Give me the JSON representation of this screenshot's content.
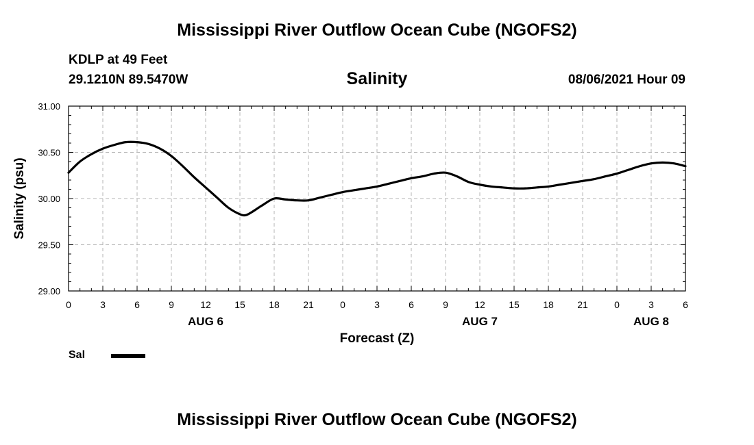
{
  "header": {
    "title": "Mississippi River Outflow Ocean Cube (NGOFS2)",
    "station": "KDLP at 49 Feet",
    "coordinates": "29.1210N  89.5470W",
    "chart_title": "Salinity",
    "datetime": "08/06/2021 Hour 09"
  },
  "footer": {
    "title": "Mississippi River Outflow Ocean Cube (NGOFS2)"
  },
  "legend": {
    "label": "Sal",
    "color": "#000000"
  },
  "chart_data": {
    "type": "line",
    "title": "Salinity",
    "xlabel": "Forecast (Z)",
    "ylabel": "Salinity (psu)",
    "xlim": [
      0,
      54
    ],
    "ylim": [
      29.0,
      31.0
    ],
    "x_ticks": [
      0,
      3,
      6,
      9,
      12,
      15,
      18,
      21,
      24,
      27,
      30,
      33,
      36,
      39,
      42,
      45,
      48,
      51,
      54
    ],
    "x_tick_labels": [
      "0",
      "3",
      "6",
      "9",
      "12",
      "15",
      "18",
      "21",
      "0",
      "3",
      "6",
      "9",
      "12",
      "15",
      "18",
      "21",
      "0",
      "3",
      "6"
    ],
    "day_labels": [
      {
        "x": 12,
        "label": "AUG 6"
      },
      {
        "x": 36,
        "label": "AUG 7"
      },
      {
        "x": 51,
        "label": "AUG 8"
      }
    ],
    "y_ticks": [
      29.0,
      29.5,
      30.0,
      30.5,
      31.0
    ],
    "y_tick_labels": [
      "29.00",
      "29.50",
      "30.00",
      "30.50",
      "31.00"
    ],
    "grid": true,
    "legend_position": "bottom-left",
    "series": [
      {
        "name": "Sal",
        "color": "#000000",
        "x": [
          0,
          1,
          2,
          3,
          4,
          5,
          6,
          7,
          8,
          9,
          10,
          11,
          12,
          13,
          14,
          15,
          15.5,
          16,
          17,
          18,
          19,
          20,
          21,
          22,
          23,
          24,
          25,
          26,
          27,
          28,
          29,
          30,
          31,
          32,
          33,
          34,
          35,
          36,
          37,
          38,
          39,
          40,
          41,
          42,
          43,
          44,
          45,
          46,
          47,
          48,
          49,
          50,
          51,
          52,
          53,
          54
        ],
        "y": [
          30.28,
          30.4,
          30.48,
          30.54,
          30.58,
          30.61,
          30.61,
          30.59,
          30.54,
          30.46,
          30.35,
          30.23,
          30.12,
          30.01,
          29.9,
          29.83,
          29.82,
          29.85,
          29.93,
          30.0,
          29.99,
          29.98,
          29.98,
          30.01,
          30.04,
          30.07,
          30.09,
          30.11,
          30.13,
          30.16,
          30.19,
          30.22,
          30.24,
          30.27,
          30.28,
          30.24,
          30.18,
          30.15,
          30.13,
          30.12,
          30.11,
          30.11,
          30.12,
          30.13,
          30.15,
          30.17,
          30.19,
          30.21,
          30.24,
          30.27,
          30.31,
          30.35,
          30.38,
          30.39,
          30.38,
          30.35
        ]
      }
    ]
  }
}
